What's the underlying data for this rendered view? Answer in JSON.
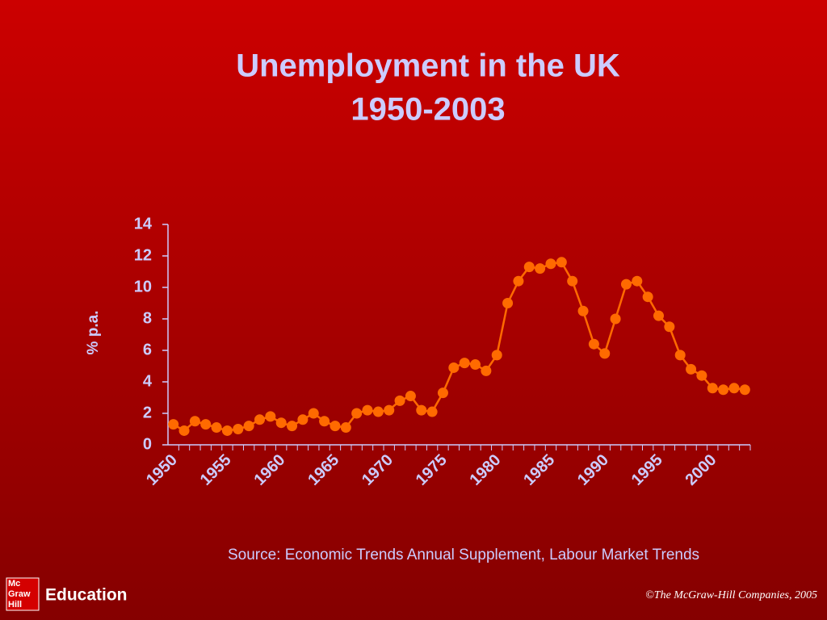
{
  "chart_data": {
    "type": "line",
    "title": "Unemployment in the UK",
    "subtitle": "1950-2003",
    "y_label": "% p.a.",
    "source": "Source: Economic Trends Annual Supplement, Labour Market Trends",
    "x": [
      1950,
      1951,
      1952,
      1953,
      1954,
      1955,
      1956,
      1957,
      1958,
      1959,
      1960,
      1961,
      1962,
      1963,
      1964,
      1965,
      1966,
      1967,
      1968,
      1969,
      1970,
      1971,
      1972,
      1973,
      1974,
      1975,
      1976,
      1977,
      1978,
      1979,
      1980,
      1981,
      1982,
      1983,
      1984,
      1985,
      1986,
      1987,
      1988,
      1989,
      1990,
      1991,
      1992,
      1993,
      1994,
      1995,
      1996,
      1997,
      1998,
      1999,
      2000,
      2001,
      2002,
      2003
    ],
    "series": [
      {
        "name": "Unemployment",
        "color": "#ff6a00",
        "values": [
          1.3,
          0.9,
          1.5,
          1.3,
          1.1,
          0.9,
          1.0,
          1.2,
          1.6,
          1.8,
          1.4,
          1.2,
          1.6,
          2.0,
          1.5,
          1.2,
          1.1,
          2.0,
          2.2,
          2.1,
          2.2,
          2.8,
          3.1,
          2.2,
          2.1,
          3.3,
          4.9,
          5.2,
          5.1,
          4.7,
          5.7,
          9.0,
          10.4,
          11.3,
          11.2,
          11.5,
          11.6,
          10.4,
          8.5,
          6.4,
          5.8,
          8.0,
          10.2,
          10.4,
          9.4,
          8.2,
          7.5,
          5.7,
          4.8,
          4.4,
          3.6,
          3.5,
          3.6,
          3.5
        ]
      }
    ],
    "xlim": [
      1949.5,
      2003.5
    ],
    "xticks": [
      1950,
      1955,
      1960,
      1965,
      1970,
      1975,
      1980,
      1985,
      1990,
      1995,
      2000
    ],
    "ylim": [
      0,
      14
    ],
    "yticks": [
      0,
      2,
      4,
      6,
      8,
      10,
      12,
      14
    ],
    "markers": true
  },
  "footer": {
    "logo": [
      "Mc",
      "Graw",
      "Hill"
    ],
    "brand": "Education",
    "copyright": "©The McGraw-Hill Companies, 2005"
  }
}
